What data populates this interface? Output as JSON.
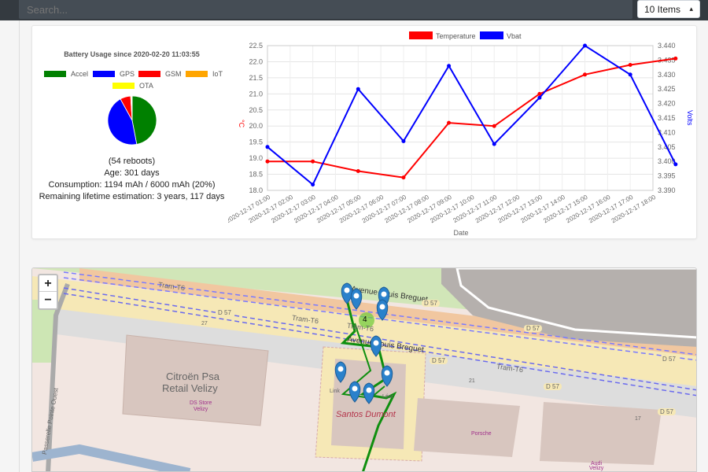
{
  "toolbar": {
    "search_placeholder": "Search...",
    "items_select": "10 Items"
  },
  "pie": {
    "title": "Battery Usage since 2020-02-20 11:03:55",
    "legend": [
      {
        "label": "Accel",
        "color": "#008000"
      },
      {
        "label": "GPS",
        "color": "#0000ff"
      },
      {
        "label": "GSM",
        "color": "#ff0000"
      },
      {
        "label": "IoT",
        "color": "#ffa500"
      },
      {
        "label": "OTA",
        "color": "#ffff00"
      }
    ],
    "slices": [
      {
        "label": "Accel",
        "percent": 47,
        "color": "#008000"
      },
      {
        "label": "GPS",
        "percent": 45,
        "color": "#0000ff"
      },
      {
        "label": "GSM",
        "percent": 7,
        "color": "#ff0000"
      },
      {
        "label": "IoT",
        "percent": 0.6,
        "color": "#ffa500"
      },
      {
        "label": "OTA",
        "percent": 0.4,
        "color": "#ffff00"
      }
    ]
  },
  "stats": {
    "reboots": "(54 reboots)",
    "age": "Age: 301 days",
    "consumption": "Consumption: 1194 mAh / 6000 mAh (20%)",
    "remaining": "Remaining lifetime estimation: 3 years, 117 days"
  },
  "chart_data": {
    "type": "line",
    "categories": [
      "2020-12-17 01:00",
      "2020-12-17 02:00",
      "2020-12-17 03:00",
      "2020-12-17 04:00",
      "2020-12-17 05:00",
      "2020-12-17 06:00",
      "2020-12-17 07:00",
      "2020-12-17 08:00",
      "2020-12-17 09:00",
      "2020-12-17 10:00",
      "2020-12-17 11:00",
      "2020-12-17 12:00",
      "2020-12-17 13:00",
      "2020-12-17 14:00",
      "2020-12-17 15:00",
      "2020-12-17 16:00",
      "2020-12-17 17:00",
      "2020-12-17 18:00"
    ],
    "series": [
      {
        "name": "Temperature",
        "axis": "left",
        "color": "#ff0000",
        "points": [
          [
            0,
            18.9
          ],
          [
            2,
            18.9
          ],
          [
            4,
            18.6
          ],
          [
            6,
            18.4
          ],
          [
            8,
            20.1
          ],
          [
            10,
            20.0
          ],
          [
            12,
            21.0
          ],
          [
            14,
            21.6
          ],
          [
            16,
            21.9
          ],
          [
            18,
            22.1
          ]
        ]
      },
      {
        "name": "Vbat",
        "axis": "right",
        "color": "#0000ff",
        "points": [
          [
            0,
            3.405
          ],
          [
            2,
            3.392
          ],
          [
            4,
            3.425
          ],
          [
            6,
            3.407
          ],
          [
            8,
            3.433
          ],
          [
            10,
            3.406
          ],
          [
            12,
            3.422
          ],
          [
            14,
            3.44
          ],
          [
            16,
            3.43
          ],
          [
            18,
            3.399
          ]
        ]
      }
    ],
    "xlabel": "Date",
    "ylabel_left": "°C",
    "ylabel_right": "Volts",
    "ylim_left": [
      18.0,
      22.5
    ],
    "yticks_left": [
      "18.0",
      "18.5",
      "19.0",
      "19.5",
      "20.0",
      "20.5",
      "21.0",
      "21.5",
      "22.0",
      "22.5"
    ],
    "ylim_right": [
      3.39,
      3.44
    ],
    "yticks_right": [
      "3.390",
      "3.395",
      "3.400",
      "3.405",
      "3.410",
      "3.415",
      "3.420",
      "3.425",
      "3.430",
      "3.435",
      "3.440"
    ],
    "grid": true,
    "legend_position": "top"
  },
  "map": {
    "zoom_in": "+",
    "zoom_out": "−",
    "cluster_count": "4",
    "labels": {
      "tram_1": "Tram-T6",
      "tram_2": "Tram-T6",
      "tram_3": "Tram-T6",
      "tram_4": "Tram-T6",
      "avenue_1": "Avenue Louis Breguet",
      "avenue_2": "Avenue Louis Breguet",
      "d57_1": "D 57",
      "d57_2": "D 57",
      "d57_3": "D 57",
      "d57_4": "D 57",
      "d57_5": "D 57",
      "d57_6": "D 57",
      "d57_7": "D 57",
      "citroen": "Citroën Psa",
      "retail": "Retail Velizy",
      "ds_store": "DS Store",
      "velizy": "Velizy",
      "santos": "Santos Dumont",
      "porsche": "Porsche",
      "audi": "Audi",
      "audi_velizy": "Velizy",
      "passerelle": "Passerelle Pointe Ouest",
      "num_27": "27",
      "num_21": "21",
      "num_17": "17",
      "linkit": "Link",
      "leor": "Léor"
    }
  }
}
